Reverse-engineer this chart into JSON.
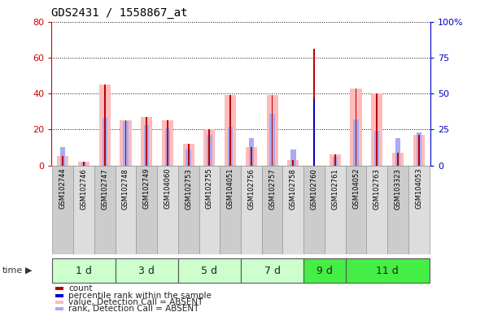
{
  "title": "GDS2431 / 1558867_at",
  "samples": [
    "GSM102744",
    "GSM102746",
    "GSM102747",
    "GSM102748",
    "GSM102749",
    "GSM104060",
    "GSM102753",
    "GSM102755",
    "GSM104051",
    "GSM102756",
    "GSM102757",
    "GSM102758",
    "GSM102760",
    "GSM102761",
    "GSM104052",
    "GSM102763",
    "GSM103323",
    "GSM104053"
  ],
  "groups": [
    {
      "label": "1 d",
      "start": 0,
      "end": 3,
      "color": "#ccffcc"
    },
    {
      "label": "3 d",
      "start": 3,
      "end": 6,
      "color": "#ccffcc"
    },
    {
      "label": "5 d",
      "start": 6,
      "end": 9,
      "color": "#ccffcc"
    },
    {
      "label": "7 d",
      "start": 9,
      "end": 12,
      "color": "#ccffcc"
    },
    {
      "label": "9 d",
      "start": 12,
      "end": 14,
      "color": "#44ee44"
    },
    {
      "label": "11 d",
      "start": 14,
      "end": 18,
      "color": "#44ee44"
    }
  ],
  "count_values": [
    5,
    2,
    45,
    25,
    27,
    25,
    12,
    20,
    39,
    10,
    39,
    3,
    65,
    6,
    43,
    40,
    7,
    17
  ],
  "percentile_vals": [
    0,
    0,
    0,
    0,
    0,
    0,
    0,
    0,
    0,
    0,
    0,
    0,
    46,
    0,
    0,
    0,
    0,
    0
  ],
  "value_absent": [
    5,
    2,
    45,
    25,
    27,
    25,
    12,
    20,
    39,
    10,
    39,
    3,
    0,
    6,
    43,
    40,
    7,
    17
  ],
  "rank_absent": [
    13,
    2,
    33,
    31,
    28,
    26,
    11,
    21,
    27,
    19,
    36,
    11,
    0,
    6,
    32,
    24,
    19,
    23
  ],
  "ylim_left": [
    0,
    80
  ],
  "ylim_right": [
    0,
    100
  ],
  "yticks_left": [
    0,
    20,
    40,
    60,
    80
  ],
  "yticks_right": [
    0,
    25,
    50,
    75,
    100
  ],
  "color_count": "#bb0000",
  "color_percentile": "#0000bb",
  "color_value_absent": "#ffbbbb",
  "color_rank_absent": "#aaaaee",
  "color_left_axis": "#cc0000",
  "color_right_axis": "#0000cc",
  "bg_color": "#ffffff",
  "sample_col_bg": "#cccccc",
  "grid_color": "#111111"
}
